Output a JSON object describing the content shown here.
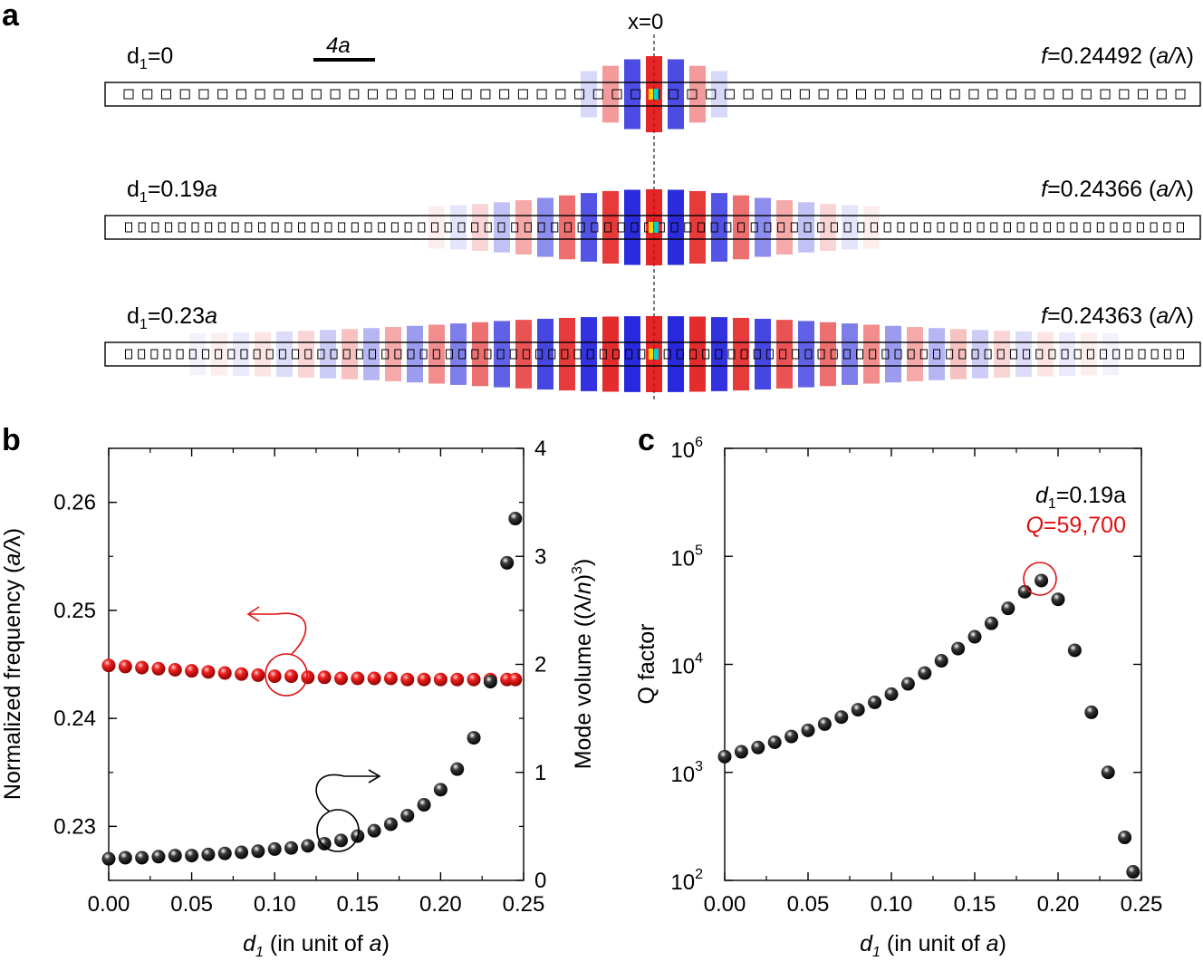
{
  "panel_labels": {
    "a": "a",
    "b": "b",
    "c": "c"
  },
  "panel_a": {
    "center_label": "x=0",
    "scale_bar_label": "4a",
    "rows": [
      {
        "d_label": "0",
        "d_unit": "",
        "f_value": "0.24492",
        "f_unit": "(a/λ)"
      },
      {
        "d_label": "0.19",
        "d_unit": "a",
        "f_value": "0.24366",
        "f_unit": "(a/λ)"
      },
      {
        "d_label": "0.23",
        "d_unit": "a",
        "f_value": "0.24363",
        "f_unit": "(a/λ)"
      }
    ],
    "field_colors": {
      "positive": "#e00000",
      "negative": "#0000d8",
      "core_hot": "#ffd400",
      "core_cool": "#00d0d0"
    }
  },
  "chart_data": [
    {
      "type": "scatter",
      "panel": "b",
      "xlabel": "d1 (in unit of a)",
      "ylabel_left": "Normalized frequency (a/λ)",
      "ylabel_right": "Mode volume ((λ/n)^3)",
      "xlim": [
        0.0,
        0.25
      ],
      "ylim_left": [
        0.225,
        0.265
      ],
      "ylim_right": [
        0,
        4
      ],
      "x_ticks": [
        "0.00",
        "0.05",
        "0.10",
        "0.15",
        "0.20",
        "0.25"
      ],
      "y_ticks_left": [
        "0.23",
        "0.24",
        "0.25",
        "0.26"
      ],
      "y_ticks_right": [
        "0",
        "1",
        "2",
        "3",
        "4"
      ],
      "series": [
        {
          "name": "Normalized frequency",
          "axis": "left",
          "color": "#e01010",
          "x": [
            0.0,
            0.01,
            0.02,
            0.03,
            0.04,
            0.05,
            0.06,
            0.07,
            0.08,
            0.09,
            0.1,
            0.11,
            0.12,
            0.13,
            0.14,
            0.15,
            0.16,
            0.17,
            0.18,
            0.19,
            0.2,
            0.21,
            0.22,
            0.23,
            0.24,
            0.245
          ],
          "values": [
            0.2449,
            0.2448,
            0.2447,
            0.2446,
            0.2445,
            0.2444,
            0.2443,
            0.2442,
            0.2441,
            0.244,
            0.2439,
            0.2439,
            0.2438,
            0.2438,
            0.2437,
            0.2437,
            0.2437,
            0.2437,
            0.2436,
            0.2436,
            0.2436,
            0.2436,
            0.2436,
            0.2436,
            0.2436,
            0.2436
          ]
        },
        {
          "name": "Mode volume",
          "axis": "right",
          "color": "#111111",
          "x": [
            0.0,
            0.01,
            0.02,
            0.03,
            0.04,
            0.05,
            0.06,
            0.07,
            0.08,
            0.09,
            0.1,
            0.11,
            0.12,
            0.13,
            0.14,
            0.15,
            0.16,
            0.17,
            0.18,
            0.19,
            0.2,
            0.21,
            0.22,
            0.23,
            0.24,
            0.245
          ],
          "values": [
            0.2,
            0.21,
            0.21,
            0.22,
            0.23,
            0.23,
            0.24,
            0.25,
            0.26,
            0.27,
            0.29,
            0.3,
            0.32,
            0.34,
            0.37,
            0.41,
            0.46,
            0.52,
            0.6,
            0.7,
            0.84,
            1.03,
            1.32,
            1.84,
            2.94,
            3.35
          ]
        }
      ]
    },
    {
      "type": "scatter",
      "panel": "c",
      "xlabel": "d1 (in unit of a)",
      "ylabel": "Q factor",
      "yscale": "log",
      "xlim": [
        0.0,
        0.25
      ],
      "ylim": [
        100,
        1000000
      ],
      "x_ticks": [
        "0.00",
        "0.05",
        "0.10",
        "0.15",
        "0.20",
        "0.25"
      ],
      "y_ticks": [
        {
          "base": "10",
          "exp": "2"
        },
        {
          "base": "10",
          "exp": "3"
        },
        {
          "base": "10",
          "exp": "4"
        },
        {
          "base": "10",
          "exp": "5"
        },
        {
          "base": "10",
          "exp": "6"
        }
      ],
      "annotation": {
        "line1": "d1=0.19a",
        "q_label": "Q",
        "q_value": "=59,700"
      },
      "series": [
        {
          "name": "Q factor",
          "color": "#111111",
          "x": [
            0.0,
            0.01,
            0.02,
            0.03,
            0.04,
            0.05,
            0.06,
            0.07,
            0.08,
            0.09,
            0.1,
            0.11,
            0.12,
            0.13,
            0.14,
            0.15,
            0.16,
            0.17,
            0.18,
            0.19,
            0.2,
            0.21,
            0.22,
            0.23,
            0.24,
            0.245
          ],
          "values": [
            1400,
            1550,
            1700,
            1900,
            2150,
            2450,
            2800,
            3250,
            3800,
            4450,
            5300,
            6600,
            8300,
            10800,
            14000,
            18000,
            24000,
            33000,
            47000,
            59700,
            40000,
            13500,
            3600,
            1000,
            250,
            120
          ]
        }
      ]
    }
  ]
}
